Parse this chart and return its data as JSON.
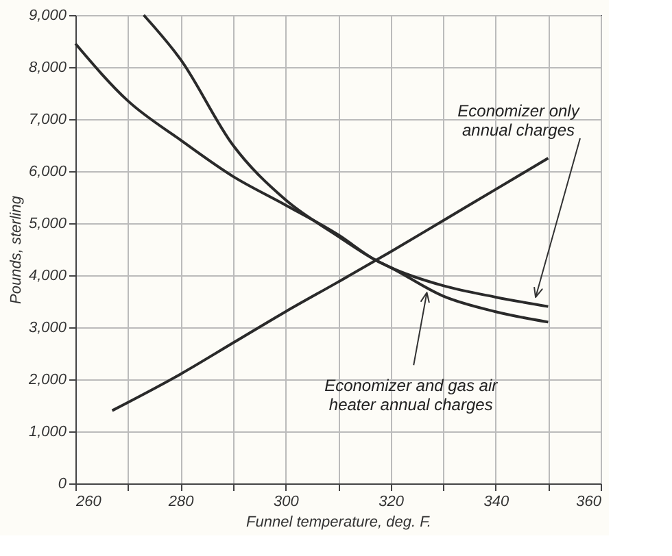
{
  "chart_data": {
    "type": "line",
    "xlabel": "Funnel temperature, deg. F.",
    "ylabel": "Pounds, sterling",
    "xlim": [
      260,
      360
    ],
    "ylim": [
      0,
      9000
    ],
    "xticks": [
      260,
      {
        "value": 270,
        "label": null
      },
      280,
      {
        "value": 290,
        "label": null
      },
      300,
      {
        "value": 310,
        "label": null
      },
      320,
      {
        "value": 330,
        "label": null
      },
      340,
      {
        "value": 350,
        "label": null
      },
      360
    ],
    "yticks": [
      {
        "value": 0,
        "label": "0"
      },
      {
        "value": 1000,
        "label": "1,000"
      },
      {
        "value": 2000,
        "label": "2,000"
      },
      {
        "value": 3000,
        "label": "3,000"
      },
      {
        "value": 4000,
        "label": "4,000"
      },
      {
        "value": 5000,
        "label": "5,000"
      },
      {
        "value": 6000,
        "label": "6,000"
      },
      {
        "value": 7000,
        "label": "7,000"
      },
      {
        "value": 8000,
        "label": "8,000"
      },
      {
        "value": 9000,
        "label": "9,000"
      }
    ],
    "grid": true,
    "marker": "none",
    "line_style": "solid",
    "series": [
      {
        "color": "#2a2a2a",
        "x": [
          267,
          280,
          290,
          300,
          310,
          320,
          330,
          340,
          350
        ],
        "values": [
          1400,
          2100,
          2700,
          3300,
          3870,
          4450,
          5050,
          5650,
          6250
        ]
      },
      {
        "color": "#2a2a2a",
        "x": [
          260,
          270,
          280,
          290,
          300,
          310,
          317,
          320,
          330,
          340,
          350
        ],
        "values": [
          8450,
          7350,
          6600,
          5900,
          5350,
          4780,
          4300,
          4150,
          3800,
          3580,
          3400
        ]
      },
      {
        "color": "#2a2a2a",
        "x": [
          273,
          280,
          290,
          300,
          310,
          317,
          320,
          330,
          340,
          350
        ],
        "values": [
          9000,
          8150,
          6500,
          5450,
          4750,
          4300,
          4150,
          3600,
          3300,
          3100
        ]
      }
    ],
    "annotations": [
      "Economizer only\nannual charges",
      {
        "text": "Economizer and gas air\nheater annual charges",
        "x": 327,
        "y": 3720
      }
    ]
  }
}
